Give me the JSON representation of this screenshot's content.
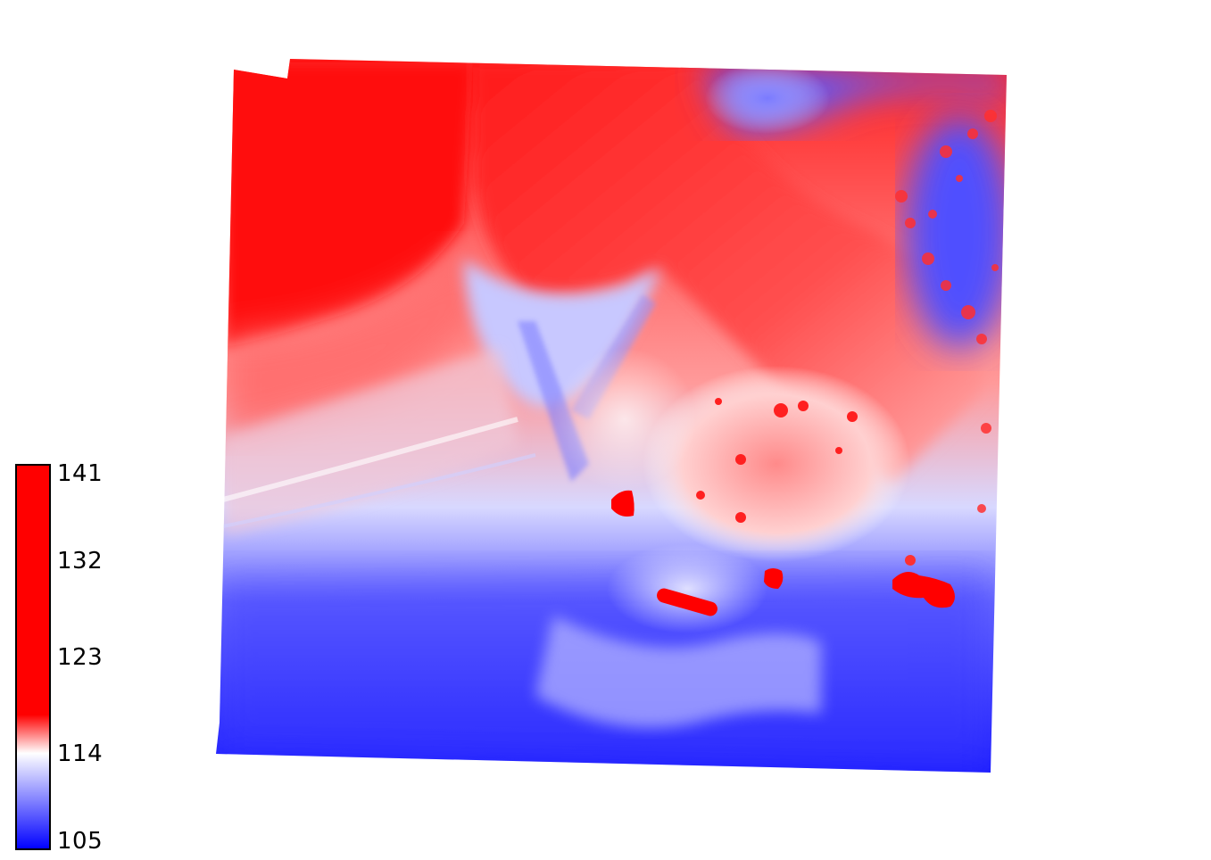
{
  "colorbar": {
    "ticks": [
      "141",
      "132",
      "123",
      "114",
      "105"
    ],
    "min": 105,
    "max": 141,
    "colors": [
      "#0000ff",
      "#ffffff",
      "#ff0000"
    ]
  }
}
